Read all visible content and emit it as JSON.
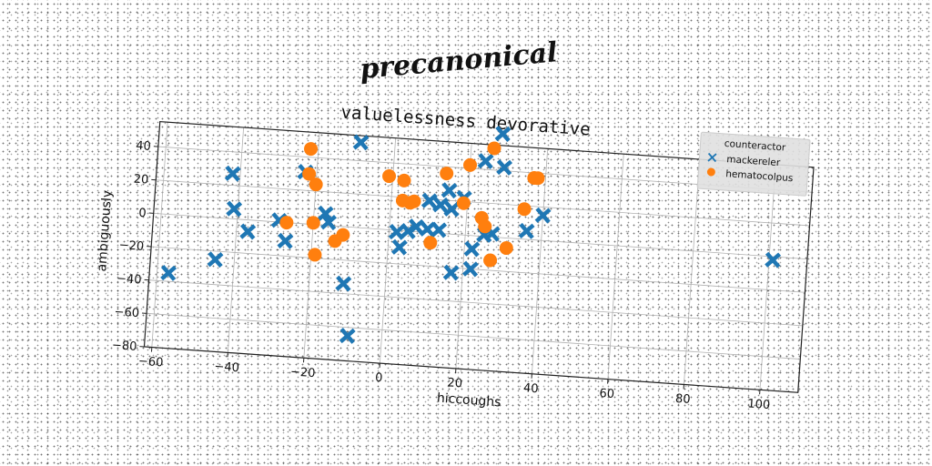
{
  "super_title": "precanonical",
  "chart_data": {
    "type": "scatter",
    "title": "valuelessness devorative",
    "xlabel": "hiccoughs",
    "ylabel": "ambiguously",
    "xlim": [
      -62,
      110
    ],
    "ylim": [
      -80,
      55
    ],
    "xticks": [
      -60,
      -40,
      -20,
      0,
      20,
      40,
      60,
      80,
      100
    ],
    "yticks": [
      -80,
      -60,
      -40,
      -20,
      0,
      20,
      40
    ],
    "grid": true,
    "legend": {
      "title": "counteractor",
      "placement": "top-right"
    },
    "series": [
      {
        "name": "mackereler",
        "marker": "x",
        "color": "#1f77b4",
        "points": [
          [
            -57,
            -35
          ],
          [
            -45,
            -25
          ],
          [
            -42,
            27
          ],
          [
            -41,
            6
          ],
          [
            -37,
            -7
          ],
          [
            -29,
            1
          ],
          [
            -27,
            -11
          ],
          [
            -23,
            31
          ],
          [
            -17,
            7
          ],
          [
            -16,
            2
          ],
          [
            -11,
            -34
          ],
          [
            -9,
            51
          ],
          [
            -9,
            -65
          ],
          [
            2,
            -1
          ],
          [
            3,
            -10
          ],
          [
            5,
            0
          ],
          [
            7,
            3
          ],
          [
            10,
            2
          ],
          [
            10,
            19
          ],
          [
            13,
            2
          ],
          [
            13,
            17
          ],
          [
            15,
            26
          ],
          [
            16,
            15
          ],
          [
            17,
            -23
          ],
          [
            19,
            22
          ],
          [
            22,
            -20
          ],
          [
            22,
            -8
          ],
          [
            24,
            45
          ],
          [
            25,
            1
          ],
          [
            27,
            2
          ],
          [
            28,
            62
          ],
          [
            29,
            42
          ],
          [
            36,
            5
          ],
          [
            40,
            15
          ],
          [
            101,
            -2
          ]
        ]
      },
      {
        "name": "hematocolpus",
        "marker": "o",
        "color": "#ff7f0e",
        "points": [
          [
            -27,
            0
          ],
          [
            -22,
            30
          ],
          [
            -22,
            45
          ],
          [
            -20,
            24
          ],
          [
            -20,
            1
          ],
          [
            -19,
            -18
          ],
          [
            -14,
            -9
          ],
          [
            -12,
            -5
          ],
          [
            -1,
            32
          ],
          [
            3,
            30
          ],
          [
            3,
            18
          ],
          [
            5,
            17
          ],
          [
            6,
            18
          ],
          [
            11,
            -6
          ],
          [
            14,
            36
          ],
          [
            19,
            19
          ],
          [
            20,
            42
          ],
          [
            24,
            11
          ],
          [
            25,
            6
          ],
          [
            26,
            53
          ],
          [
            27,
            -14
          ],
          [
            31,
            -6
          ],
          [
            35,
            18
          ],
          [
            37,
            37
          ],
          [
            38,
            37
          ]
        ]
      }
    ]
  }
}
